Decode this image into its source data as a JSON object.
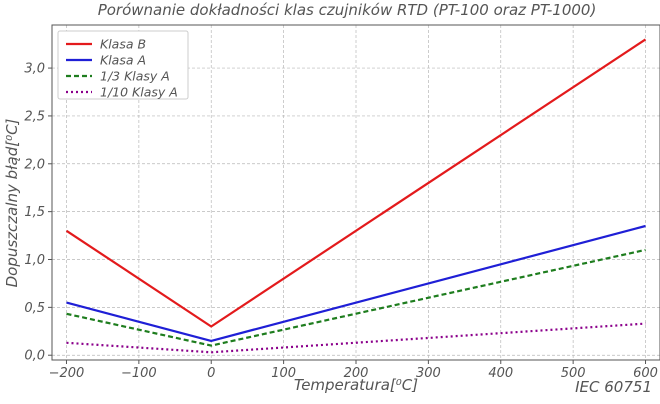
{
  "chart_data": {
    "type": "line",
    "title": "Porównanie dokładności klas czujników RTD (PT-100 oraz PT-1000)",
    "xlabel": "Temperatura[⁰C]",
    "ylabel": "Dopuszczalny błąd[⁰C]",
    "source_note": "IEC 60751",
    "x": [
      -200,
      0,
      600
    ],
    "xlim": [
      -220,
      620
    ],
    "ylim": [
      -0.05,
      3.45
    ],
    "xticks": [
      -200,
      -100,
      0,
      100,
      200,
      300,
      400,
      500,
      600
    ],
    "xtick_labels": [
      "−200",
      "−100",
      "0",
      "100",
      "200",
      "300",
      "400",
      "500",
      "600"
    ],
    "yticks": [
      0.0,
      0.5,
      1.0,
      1.5,
      2.0,
      2.5,
      3.0
    ],
    "ytick_labels": [
      "0,0",
      "0,5",
      "1,0",
      "1,5",
      "2,0",
      "2,5",
      "3,0"
    ],
    "grid": true,
    "legend_position": "top-left",
    "series": [
      {
        "name": "Klasa B",
        "values": [
          1.3,
          0.3,
          3.3
        ],
        "color": "#e31a1c",
        "style": "solid"
      },
      {
        "name": "Klasa A",
        "values": [
          0.55,
          0.15,
          1.35
        ],
        "color": "#1f1fd6",
        "style": "solid"
      },
      {
        "name": "1/3 Klasy A",
        "values": [
          0.433,
          0.1,
          1.1
        ],
        "color": "#1e7d1e",
        "style": "dashed"
      },
      {
        "name": "1/10 Klasy A",
        "values": [
          0.13,
          0.03,
          0.33
        ],
        "color": "#8b008b",
        "style": "dotted"
      }
    ]
  }
}
